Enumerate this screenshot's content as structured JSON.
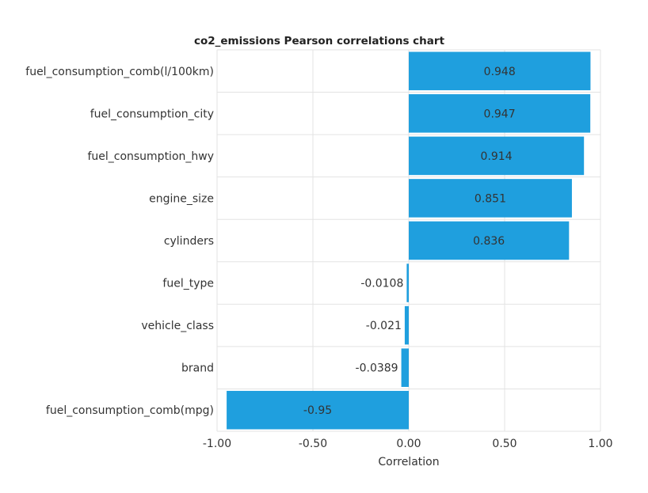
{
  "chart_data": {
    "type": "bar",
    "orientation": "horizontal",
    "title": "co2_emissions Pearson correlations chart",
    "xlabel": "Correlation",
    "ylabel": "",
    "xlim": [
      -1.0,
      1.0
    ],
    "xticks": [
      -1.0,
      -0.5,
      0.0,
      0.5,
      1.0
    ],
    "xtick_labels": [
      "-1.00",
      "-0.50",
      "0.00",
      "0.50",
      "1.00"
    ],
    "grid": true,
    "bar_color": "#1f9fde",
    "categories": [
      "fuel_consumption_comb(l/100km)",
      "fuel_consumption_city",
      "fuel_consumption_hwy",
      "engine_size",
      "cylinders",
      "fuel_type",
      "vehicle_class",
      "brand",
      "fuel_consumption_comb(mpg)"
    ],
    "values": [
      0.948,
      0.947,
      0.914,
      0.851,
      0.836,
      -0.0108,
      -0.021,
      -0.0389,
      -0.95
    ],
    "value_labels": [
      "0.948",
      "0.947",
      "0.914",
      "0.851",
      "0.836",
      "-0.0108",
      "-0.021",
      "-0.0389",
      "-0.95"
    ]
  }
}
